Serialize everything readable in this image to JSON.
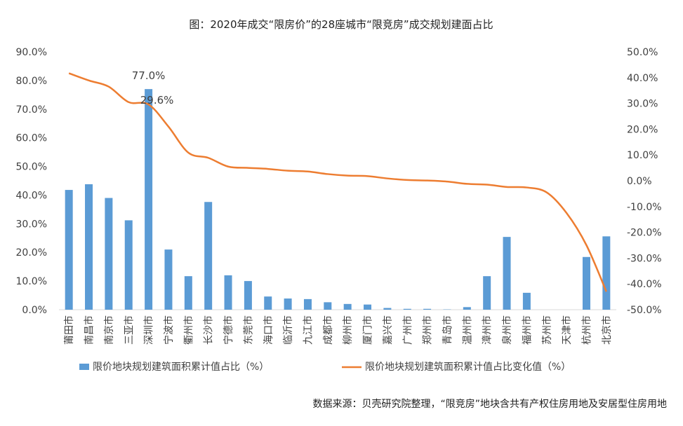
{
  "chart_data": {
    "type": "bar",
    "title": "图：2020年成交“限房价”的28座城市“限竞房”成交规划建面占比",
    "source": "数据来源：贝壳研究院整理，“限竞房”地块含共有产权住房用地及安居型住房用地",
    "categories": [
      "莆田市",
      "南昌市",
      "南京市",
      "三亚市",
      "深圳市",
      "宁波市",
      "衢州市",
      "长沙市",
      "宁德市",
      "东莞市",
      "海口市",
      "临沂市",
      "九江市",
      "成都市",
      "柳州市",
      "厦门市",
      "嘉兴市",
      "广州市",
      "郑州市",
      "青岛市",
      "温州市",
      "漳州市",
      "泉州市",
      "福州市",
      "苏州市",
      "天津市",
      "杭州市",
      "北京市"
    ],
    "left_axis": {
      "ylim": [
        0,
        90
      ],
      "ticks": [
        "0.0%",
        "10.0%",
        "20.0%",
        "30.0%",
        "40.0%",
        "50.0%",
        "60.0%",
        "70.0%",
        "80.0%",
        "90.0%"
      ]
    },
    "right_axis": {
      "ylim": [
        -50,
        50
      ],
      "ticks": [
        "-50.0%",
        "-40.0%",
        "-30.0%",
        "-20.0%",
        "-10.0%",
        "0.0%",
        "10.0%",
        "20.0%",
        "30.0%",
        "40.0%",
        "50.0%"
      ]
    },
    "series": [
      {
        "name": "限价地块规划建筑面积累计值占比（%）",
        "type": "bar",
        "axis": "left",
        "color": "#5b9bd5",
        "values": [
          41.8,
          43.8,
          39.0,
          31.2,
          77.0,
          21.0,
          11.7,
          37.6,
          12.0,
          10.0,
          4.6,
          3.9,
          3.7,
          2.6,
          2.0,
          1.8,
          0.6,
          0.3,
          0.3,
          0.1,
          0.9,
          11.7,
          25.4,
          5.9,
          0.0,
          0.0,
          18.4,
          25.6
        ]
      },
      {
        "name": "限价地块规划建筑面积累计值占比变化值（%）",
        "type": "line",
        "axis": "right",
        "color": "#ed7d31",
        "values": [
          41.7,
          38.9,
          36.5,
          30.5,
          29.6,
          21.0,
          10.9,
          8.9,
          5.5,
          5.0,
          4.6,
          3.9,
          3.6,
          2.6,
          2.0,
          1.8,
          0.9,
          0.3,
          0.1,
          -0.3,
          -1.2,
          -1.5,
          -2.4,
          -2.6,
          -4.5,
          -12.5,
          -25.0,
          -43.0
        ]
      }
    ],
    "data_labels": [
      {
        "series": 0,
        "index": 4,
        "text": "77.0%"
      },
      {
        "series": 1,
        "index": 4,
        "text": "29.6%"
      }
    ],
    "grid": false,
    "legend_position": "bottom"
  }
}
